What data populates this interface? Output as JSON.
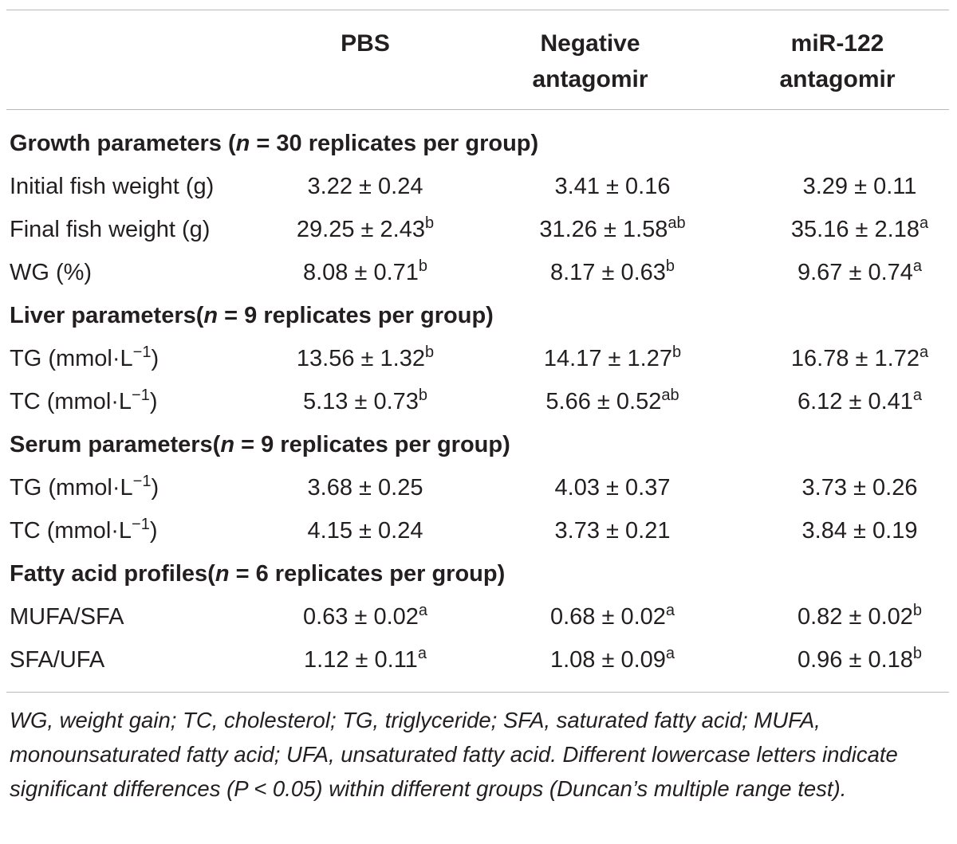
{
  "table": {
    "columns": [
      {
        "line1": "PBS",
        "line2": ""
      },
      {
        "line1": "Negative",
        "line2": "antagomir"
      },
      {
        "line1": "miR-122",
        "line2": "antagomir"
      }
    ],
    "sections": [
      {
        "title_pre": "Growth parameters (",
        "title_n": "n",
        "title_post": " = 30 replicates per group)",
        "rows": [
          {
            "label": "Initial fish weight (g)",
            "label_sup": "",
            "label_post": "",
            "values": [
              {
                "v": "3.22 ± 0.24",
                "s": ""
              },
              {
                "v": "3.41 ± 0.16",
                "s": ""
              },
              {
                "v": "3.29 ± 0.11",
                "s": ""
              }
            ]
          },
          {
            "label": "Final fish weight (g)",
            "label_sup": "",
            "label_post": "",
            "values": [
              {
                "v": "29.25 ± 2.43",
                "s": "b"
              },
              {
                "v": "31.26 ± 1.58",
                "s": "ab"
              },
              {
                "v": "35.16 ± 2.18",
                "s": "a"
              }
            ]
          },
          {
            "label": "WG (%)",
            "label_sup": "",
            "label_post": "",
            "values": [
              {
                "v": "8.08 ± 0.71",
                "s": "b"
              },
              {
                "v": "8.17 ± 0.63",
                "s": "b"
              },
              {
                "v": "9.67 ± 0.74",
                "s": "a"
              }
            ]
          }
        ]
      },
      {
        "title_pre": "Liver parameters(",
        "title_n": "n",
        "title_post": " = 9 replicates per group)",
        "rows": [
          {
            "label": "TG (mmol·L",
            "label_sup": "−1",
            "label_post": ")",
            "values": [
              {
                "v": "13.56 ± 1.32",
                "s": "b"
              },
              {
                "v": "14.17 ± 1.27",
                "s": "b"
              },
              {
                "v": "16.78 ± 1.72",
                "s": "a"
              }
            ]
          },
          {
            "label": "TC (mmol·L",
            "label_sup": "−1",
            "label_post": ")",
            "values": [
              {
                "v": "5.13 ± 0.73",
                "s": "b"
              },
              {
                "v": "5.66 ± 0.52",
                "s": "ab"
              },
              {
                "v": "6.12 ± 0.41",
                "s": "a"
              }
            ]
          }
        ]
      },
      {
        "title_pre": "Serum parameters(",
        "title_n": "n",
        "title_post": " = 9 replicates per group)",
        "rows": [
          {
            "label": "TG (mmol·L",
            "label_sup": "−1",
            "label_post": ")",
            "values": [
              {
                "v": "3.68 ± 0.25",
                "s": ""
              },
              {
                "v": "4.03 ± 0.37",
                "s": ""
              },
              {
                "v": "3.73 ± 0.26",
                "s": ""
              }
            ]
          },
          {
            "label": "TC (mmol·L",
            "label_sup": "−1",
            "label_post": ")",
            "values": [
              {
                "v": "4.15 ± 0.24",
                "s": ""
              },
              {
                "v": "3.73 ± 0.21",
                "s": ""
              },
              {
                "v": "3.84 ± 0.19",
                "s": ""
              }
            ]
          }
        ]
      },
      {
        "title_pre": "Fatty acid profiles(",
        "title_n": "n",
        "title_post": " = 6 replicates per group)",
        "rows": [
          {
            "label": "MUFA/SFA",
            "label_sup": "",
            "label_post": "",
            "values": [
              {
                "v": "0.63 ± 0.02",
                "s": "a"
              },
              {
                "v": "0.68 ± 0.02",
                "s": "a"
              },
              {
                "v": "0.82 ± 0.02",
                "s": "b"
              }
            ]
          },
          {
            "label": "SFA/UFA",
            "label_sup": "",
            "label_post": "",
            "values": [
              {
                "v": "1.12 ± 0.11",
                "s": "a"
              },
              {
                "v": "1.08 ± 0.09",
                "s": "a"
              },
              {
                "v": "0.96 ± 0.18",
                "s": "b"
              }
            ]
          }
        ]
      }
    ]
  },
  "footnote": "WG, weight gain; TC, cholesterol; TG, triglyceride; SFA, saturated fatty acid; MUFA, monounsaturated fatty acid; UFA, unsaturated fatty acid. Different lowercase letters indicate significant differences (P < 0.05) within different groups (Duncan’s multiple range test)."
}
